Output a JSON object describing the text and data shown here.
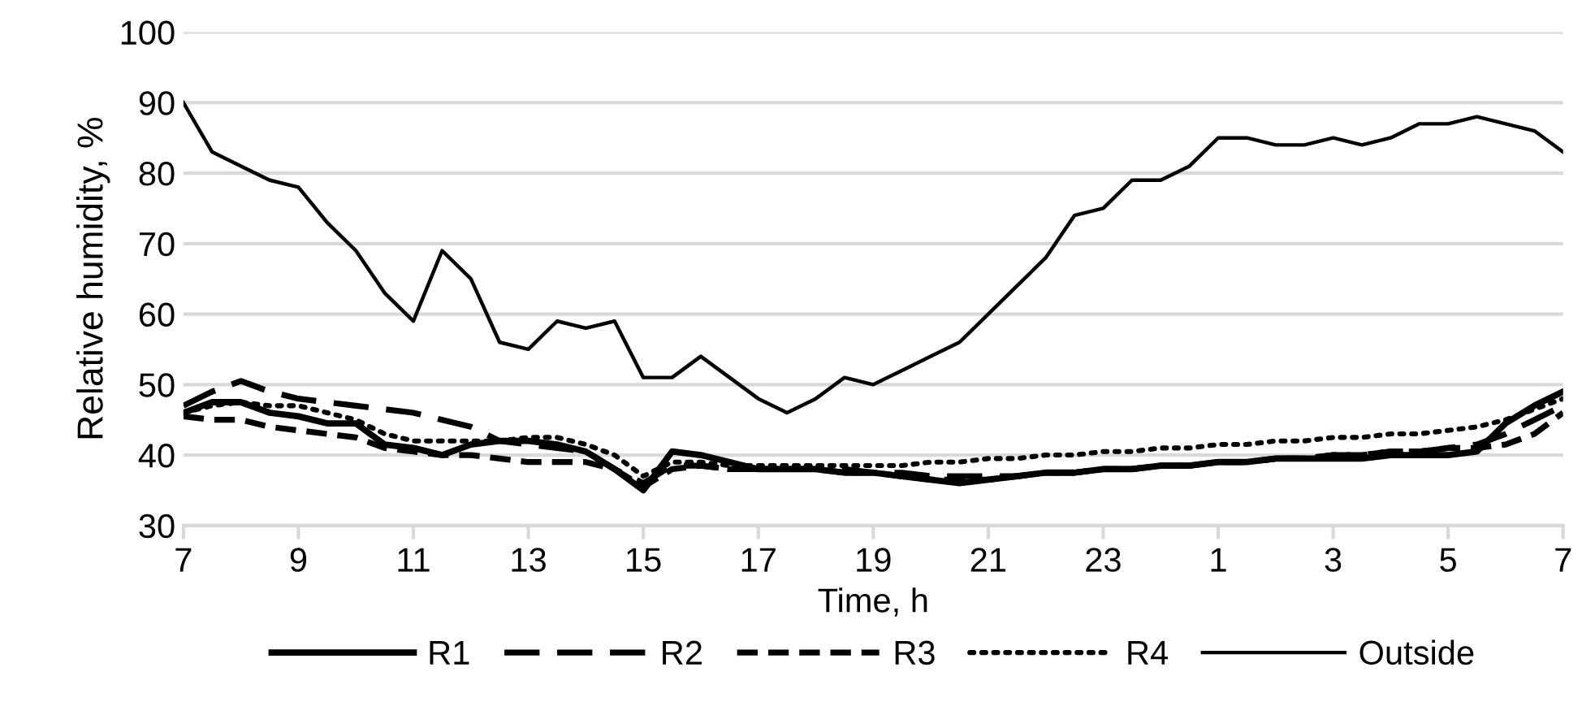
{
  "chart_data": {
    "type": "line",
    "xlabel": "Time, h",
    "ylabel": "Relative humidity, %",
    "categories": [
      "7",
      null,
      null,
      null,
      "9",
      null,
      null,
      null,
      "11",
      null,
      null,
      null,
      "13",
      null,
      null,
      null,
      "15",
      null,
      null,
      null,
      "17",
      null,
      null,
      null,
      "19",
      null,
      null,
      null,
      "21",
      null,
      null,
      null,
      "23",
      null,
      null,
      null,
      "1",
      null,
      null,
      null,
      "3",
      null,
      null,
      null,
      "5",
      null,
      null,
      null,
      "7"
    ],
    "ylim": [
      30,
      100
    ],
    "yticks": [
      30,
      40,
      50,
      60,
      70,
      80,
      90,
      100
    ],
    "grid": "y",
    "legend": "bottom",
    "marker": "none",
    "series": [
      {
        "name": "R1",
        "color": "#000000",
        "line_style": "solid",
        "values": [
          46,
          47.5,
          47.5,
          46,
          45.5,
          44.5,
          44.5,
          41.5,
          41,
          40,
          41.5,
          42,
          42,
          41.5,
          40.5,
          38,
          35,
          40.5,
          40,
          39,
          38,
          38,
          38,
          37.5,
          37.5,
          37,
          36.5,
          36,
          36.5,
          37,
          37.5,
          37.5,
          38,
          38,
          38.5,
          38.5,
          39,
          39,
          39.5,
          39.5,
          39.5,
          39.5,
          40,
          40,
          40,
          40.5,
          44.5,
          47,
          49
        ]
      },
      {
        "name": "R2",
        "color": "#000000",
        "line_style": "dashed",
        "values": [
          47,
          49,
          50.5,
          49,
          48,
          47.5,
          47,
          46.5,
          46,
          45,
          44,
          42,
          41.5,
          41,
          40.5,
          38,
          36,
          38.5,
          38.5,
          38,
          38,
          38,
          38,
          38,
          37.5,
          37.5,
          37,
          37,
          37,
          37,
          37.5,
          37.5,
          38,
          38,
          38.5,
          38.5,
          39,
          39,
          39.5,
          39.5,
          40,
          40,
          40.5,
          40.5,
          41,
          41.5,
          43,
          45,
          47
        ]
      },
      {
        "name": "R3",
        "color": "#000000",
        "line_style": "dashed",
        "values": [
          45.5,
          45,
          45,
          44,
          43.5,
          43,
          42.5,
          41,
          40.5,
          40,
          40,
          39.5,
          39,
          39,
          39,
          38,
          35.5,
          38,
          38.5,
          38,
          38,
          38,
          38,
          37.5,
          37.5,
          37,
          36.5,
          36.5,
          36.5,
          37,
          37.5,
          37.5,
          38,
          38,
          38.5,
          38.5,
          39,
          39,
          39.5,
          39.5,
          40,
          40,
          40.5,
          40.5,
          41,
          41,
          41.5,
          43,
          46
        ]
      },
      {
        "name": "R4",
        "color": "#000000",
        "line_style": "dotted",
        "values": [
          46,
          47,
          47.5,
          47,
          47,
          46,
          45,
          43,
          42,
          42,
          42,
          42,
          42.5,
          42.5,
          41.5,
          40,
          37,
          39,
          39,
          38.5,
          38.5,
          38.5,
          38.5,
          38.5,
          38.5,
          38.5,
          39,
          39,
          39.5,
          39.5,
          40,
          40,
          40.5,
          40.5,
          41,
          41,
          41.5,
          41.5,
          42,
          42,
          42.5,
          42.5,
          43,
          43,
          43.5,
          44,
          45,
          46.5,
          48
        ]
      },
      {
        "name": "Outside",
        "color": "#000000",
        "line_style": "solid",
        "values": [
          90,
          83,
          81,
          79,
          78,
          73,
          69,
          63,
          59,
          69,
          65,
          56,
          55,
          59,
          58,
          59,
          51,
          51,
          54,
          51,
          48,
          46,
          48,
          51,
          50,
          52,
          54,
          56,
          60,
          64,
          68,
          74,
          75,
          79,
          79,
          81,
          85,
          85,
          84,
          84,
          85,
          84,
          85,
          87,
          87,
          88,
          87,
          86,
          83
        ]
      }
    ]
  }
}
